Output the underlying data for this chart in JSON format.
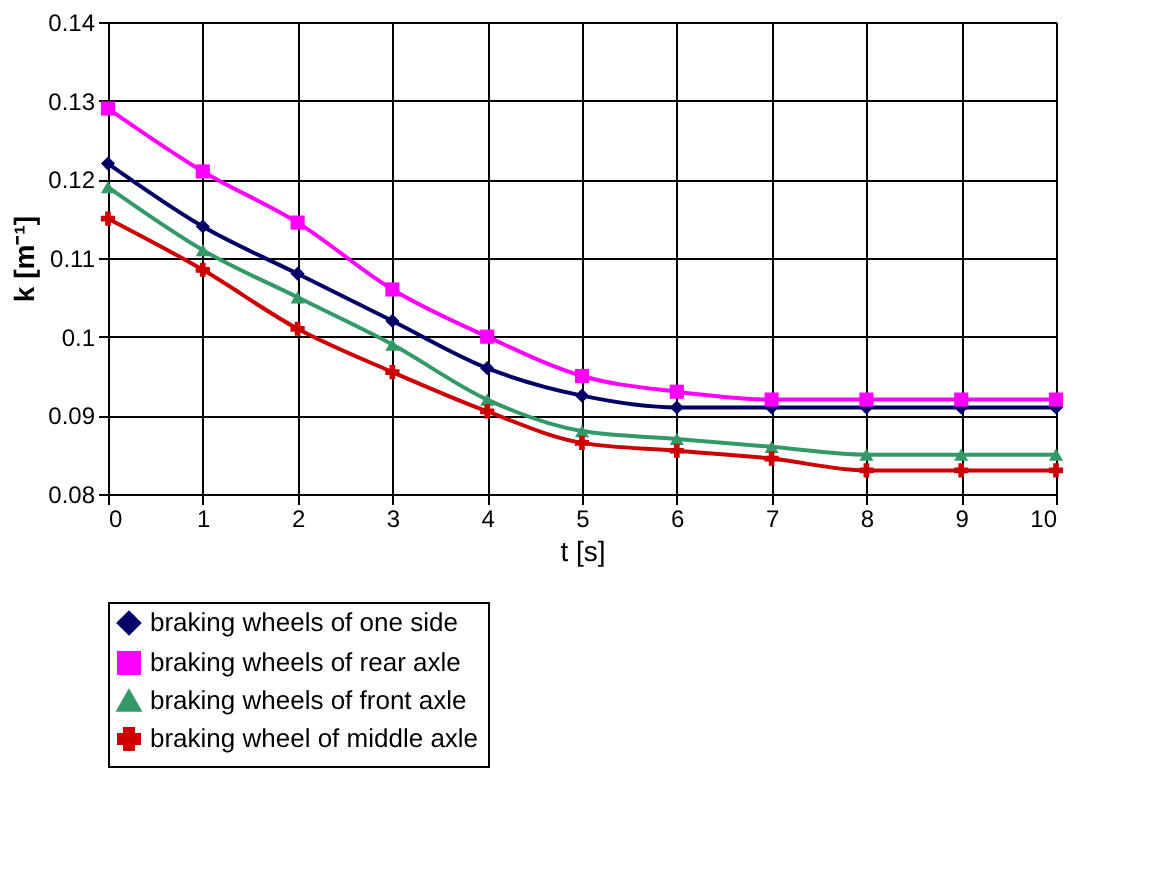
{
  "chart_data": {
    "type": "line",
    "xlabel": "t [s]",
    "ylabel": "k [m⁻¹]",
    "x": [
      0,
      1,
      2,
      3,
      4,
      5,
      6,
      7,
      8,
      9,
      10
    ],
    "series": [
      {
        "name": "braking wheels of one side",
        "color": "#000066",
        "marker": "diamond",
        "values": [
          0.122,
          0.114,
          0.108,
          0.102,
          0.096,
          0.0925,
          0.091,
          0.091,
          0.091,
          0.091,
          0.091
        ]
      },
      {
        "name": "braking wheels of rear axle",
        "color": "#ff00ff",
        "marker": "square",
        "values": [
          0.129,
          0.121,
          0.1145,
          0.106,
          0.1,
          0.095,
          0.093,
          0.092,
          0.092,
          0.092,
          0.092
        ]
      },
      {
        "name": "braking wheels of front axle",
        "color": "#339966",
        "marker": "triangle",
        "values": [
          0.119,
          0.111,
          0.105,
          0.099,
          0.092,
          0.088,
          0.087,
          0.086,
          0.085,
          0.085,
          0.085
        ]
      },
      {
        "name": "braking wheel of middle axle",
        "color": "#cc0000",
        "marker": "cross",
        "values": [
          0.115,
          0.1085,
          0.101,
          0.0955,
          0.0905,
          0.0865,
          0.0855,
          0.0845,
          0.083,
          0.083,
          0.083
        ]
      }
    ],
    "xlim": [
      0,
      10
    ],
    "xticks": [
      0,
      1,
      2,
      3,
      4,
      5,
      6,
      7,
      8,
      9,
      10
    ],
    "ylim": [
      0.08,
      0.14
    ],
    "yticks": [
      0.08,
      0.09,
      0.1,
      0.11,
      0.12,
      0.13,
      0.14
    ],
    "grid": true,
    "legend": "bottom",
    "line_style": "solid"
  }
}
